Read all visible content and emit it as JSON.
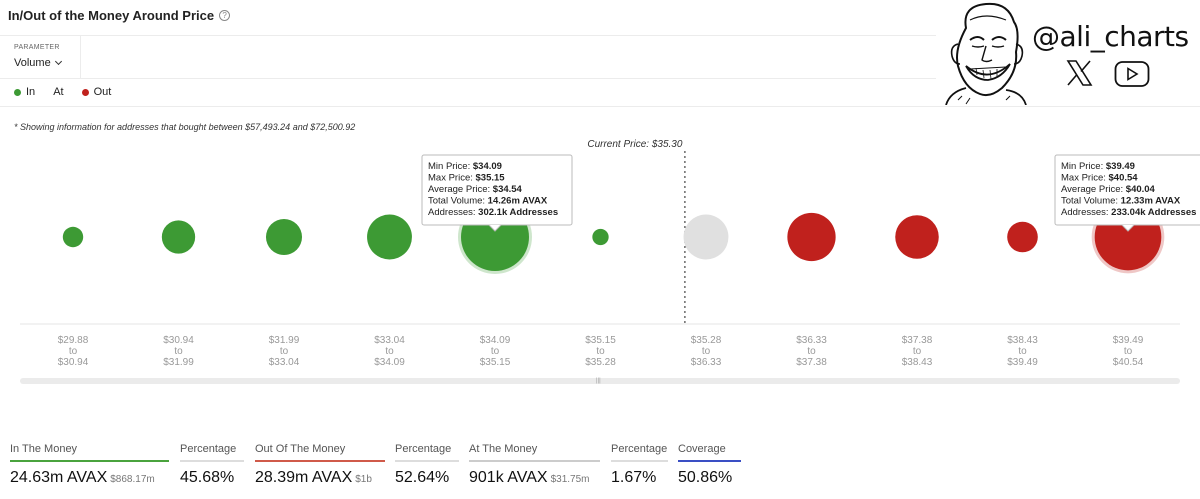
{
  "title": "In/Out of the Money Around Price",
  "parameter": {
    "label": "PARAMETER",
    "value": "Volume"
  },
  "legend": {
    "in": {
      "label": "In",
      "color": "#3d9a34"
    },
    "at": {
      "label": "At"
    },
    "out": {
      "label": "Out",
      "color": "#c0211d"
    }
  },
  "brand": {
    "handle": "@ali_charts",
    "icons": [
      "x-icon",
      "youtube-icon",
      "meme-face-avatar"
    ]
  },
  "note": "* Showing information for addresses that bought between $57,493.24 and $72,500.92",
  "chart_data": {
    "type": "scatter",
    "current_price_label": "Current Price: $35.30",
    "current_price": 35.3,
    "clusters": [
      {
        "from": "$29.88",
        "to": "$30.94",
        "status": "in",
        "relative_size": 0.3
      },
      {
        "from": "$30.94",
        "to": "$31.99",
        "status": "in",
        "relative_size": 0.49
      },
      {
        "from": "$31.99",
        "to": "$33.04",
        "status": "in",
        "relative_size": 0.53
      },
      {
        "from": "$33.04",
        "to": "$34.09",
        "status": "in",
        "relative_size": 0.66
      },
      {
        "from": "$34.09",
        "to": "$35.15",
        "status": "in",
        "relative_size": 1.0,
        "highlighted": true
      },
      {
        "from": "$35.15",
        "to": "$35.28",
        "status": "in",
        "relative_size": 0.24
      },
      {
        "from": "$35.28",
        "to": "$36.33",
        "status": "at",
        "relative_size": 0.66
      },
      {
        "from": "$36.33",
        "to": "$37.38",
        "status": "out",
        "relative_size": 0.71
      },
      {
        "from": "$37.38",
        "to": "$38.43",
        "status": "out",
        "relative_size": 0.64
      },
      {
        "from": "$38.43",
        "to": "$39.49",
        "status": "out",
        "relative_size": 0.45
      },
      {
        "from": "$39.49",
        "to": "$40.54",
        "status": "out",
        "relative_size": 0.98,
        "highlighted": true
      }
    ],
    "tooltips": [
      {
        "cluster": 4,
        "rows": [
          {
            "label": "Min Price:",
            "value": "$34.09"
          },
          {
            "label": "Max Price:",
            "value": "$35.15"
          },
          {
            "label": "Average Price:",
            "value": "$34.54"
          },
          {
            "label": "Total Volume:",
            "value": "14.26m AVAX"
          },
          {
            "label": "Addresses:",
            "value": "302.1k Addresses"
          }
        ]
      },
      {
        "cluster": 10,
        "rows": [
          {
            "label": "Min Price:",
            "value": "$39.49"
          },
          {
            "label": "Max Price:",
            "value": "$40.54"
          },
          {
            "label": "Average Price:",
            "value": "$40.04"
          },
          {
            "label": "Total Volume:",
            "value": "12.33m AVAX"
          },
          {
            "label": "Addresses:",
            "value": "233.04k Addresses"
          }
        ]
      }
    ],
    "to_word": "to",
    "colors": {
      "in": "#3d9a34",
      "at": "#e0e0e0",
      "out": "#c0211d"
    }
  },
  "stats": [
    {
      "label": "In The Money",
      "value": "24.63m AVAX",
      "sub": "$868.17m",
      "rule": "#4aa33d"
    },
    {
      "label": "Percentage",
      "value": "45.68%",
      "sub": "",
      "rule": "#dddddd"
    },
    {
      "label": "Out Of The Money",
      "value": "28.39m AVAX",
      "sub": "$1b",
      "rule": "#d05a4a"
    },
    {
      "label": "Percentage",
      "value": "52.64%",
      "sub": "",
      "rule": "#dddddd"
    },
    {
      "label": "At The Money",
      "value": "901k AVAX",
      "sub": "$31.75m",
      "rule": "#cccccc"
    },
    {
      "label": "Percentage",
      "value": "1.67%",
      "sub": "",
      "rule": "#dddddd"
    },
    {
      "label": "Coverage",
      "value": "50.86%",
      "sub": "",
      "rule": "#3a4fc4"
    }
  ]
}
